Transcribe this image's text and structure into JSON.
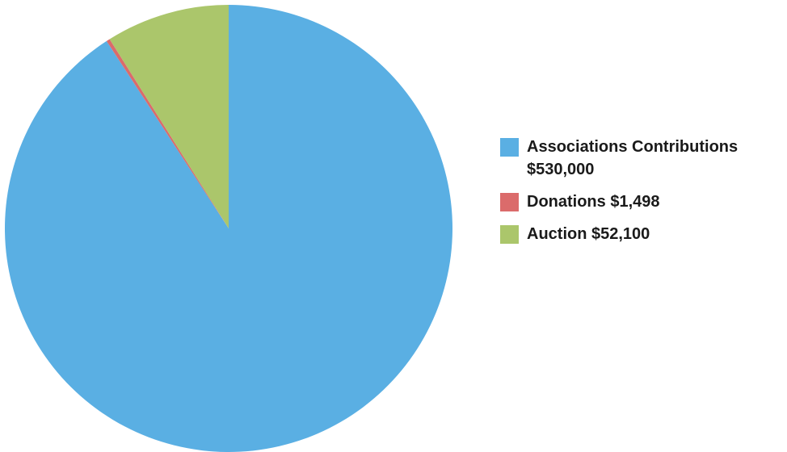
{
  "chart_data": {
    "type": "pie",
    "title": "",
    "slices": [
      {
        "label": "Associations Contributions $530,000",
        "value": 530000,
        "color": "#5AAFE3"
      },
      {
        "label": "Donations $1,498",
        "value": 1498,
        "color": "#DB6B6B"
      },
      {
        "label": "Auction $52,100",
        "value": 52100,
        "color": "#ABC66B"
      }
    ],
    "start": "12 o'clock",
    "direction": "clockwise",
    "legend_position": "right"
  }
}
